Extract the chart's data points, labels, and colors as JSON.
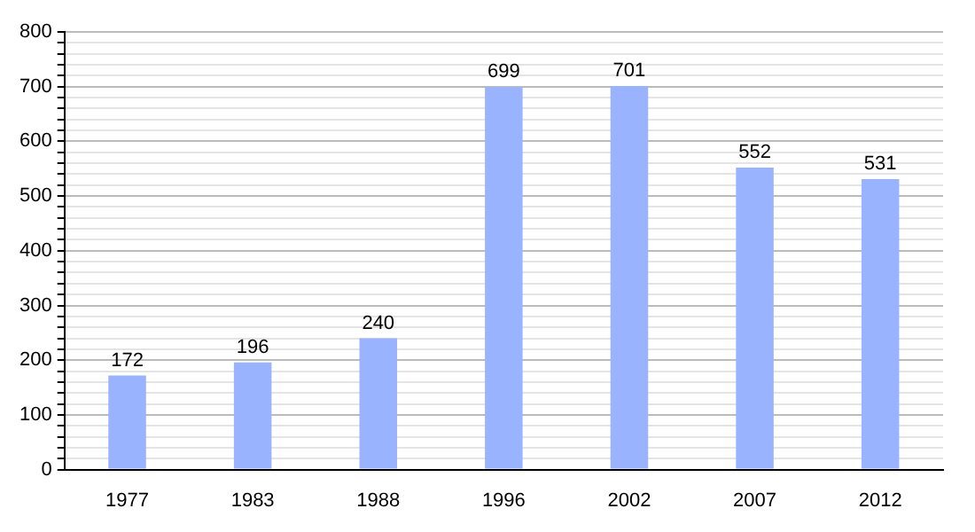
{
  "chart_data": {
    "type": "bar",
    "categories": [
      "1977",
      "1983",
      "1988",
      "1996",
      "2002",
      "2007",
      "2012"
    ],
    "values": [
      172,
      196,
      240,
      699,
      701,
      552,
      531
    ],
    "color": "#99b3ff",
    "data_labels": true,
    "grid": "y",
    "legend": false,
    "ylim": [
      0,
      800
    ],
    "yticks": [
      0,
      {
        "value": 20,
        "label": null
      },
      {
        "value": 40,
        "label": null
      },
      {
        "value": 60,
        "label": null
      },
      {
        "value": 80,
        "label": null
      },
      100,
      {
        "value": 120,
        "label": null
      },
      {
        "value": 140,
        "label": null
      },
      {
        "value": 160,
        "label": null
      },
      {
        "value": 180,
        "label": null
      },
      200,
      {
        "value": 220,
        "label": null
      },
      {
        "value": 240,
        "label": null
      },
      {
        "value": 260,
        "label": null
      },
      {
        "value": 280,
        "label": null
      },
      300,
      {
        "value": 320,
        "label": null
      },
      {
        "value": 340,
        "label": null
      },
      {
        "value": 360,
        "label": null
      },
      {
        "value": 380,
        "label": null
      },
      400,
      {
        "value": 420,
        "label": null
      },
      {
        "value": 440,
        "label": null
      },
      {
        "value": 460,
        "label": null
      },
      {
        "value": 480,
        "label": null
      },
      500,
      {
        "value": 520,
        "label": null
      },
      {
        "value": 540,
        "label": null
      },
      {
        "value": 560,
        "label": null
      },
      {
        "value": 580,
        "label": null
      },
      600,
      {
        "value": 620,
        "label": null
      },
      {
        "value": 640,
        "label": null
      },
      {
        "value": 660,
        "label": null
      },
      {
        "value": 680,
        "label": null
      },
      700,
      {
        "value": 720,
        "label": null
      },
      {
        "value": 740,
        "label": null
      },
      {
        "value": 760,
        "label": null
      },
      {
        "value": 780,
        "label": null
      },
      800
    ]
  }
}
